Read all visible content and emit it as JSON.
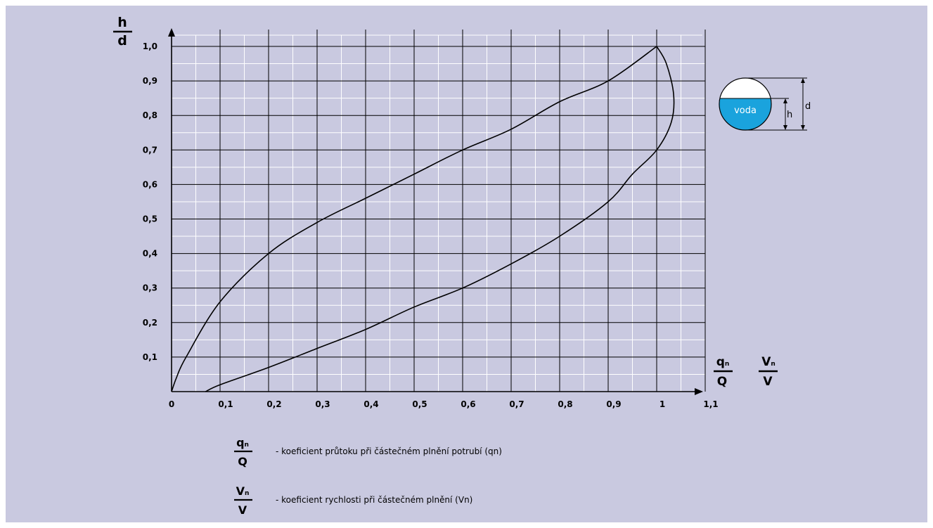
{
  "chart_data": {
    "type": "line",
    "xlim": [
      0,
      1.1
    ],
    "ylim": [
      0,
      1.0
    ],
    "grid": true,
    "x_ticks": [
      {
        "value": 0,
        "label": "0"
      },
      {
        "value": 0.1,
        "label": "0,1"
      },
      {
        "value": 0.2,
        "label": "0,2"
      },
      {
        "value": 0.3,
        "label": "0,3"
      },
      {
        "value": 0.4,
        "label": "0,4"
      },
      {
        "value": 0.5,
        "label": "0,5"
      },
      {
        "value": 0.6,
        "label": "0,6"
      },
      {
        "value": 0.7,
        "label": "0,7"
      },
      {
        "value": 0.8,
        "label": "0,8"
      },
      {
        "value": 0.9,
        "label": "0,9"
      },
      {
        "value": 1.0,
        "label": "1"
      },
      {
        "value": 1.1,
        "label": "1,1"
      }
    ],
    "y_ticks": [
      {
        "value": 0.1,
        "label": "0,1"
      },
      {
        "value": 0.2,
        "label": "0,2"
      },
      {
        "value": 0.3,
        "label": "0,3"
      },
      {
        "value": 0.4,
        "label": "0,4"
      },
      {
        "value": 0.5,
        "label": "0,5"
      },
      {
        "value": 0.6,
        "label": "0,6"
      },
      {
        "value": 0.7,
        "label": "0,7"
      },
      {
        "value": 0.8,
        "label": "0,8"
      },
      {
        "value": 0.9,
        "label": "0,9"
      },
      {
        "value": 1.0,
        "label": "1,0"
      }
    ],
    "y_axis_label": {
      "numerator": "h",
      "denominator": "d"
    },
    "x_axis_labels": [
      {
        "numerator": "q",
        "subscript": "n",
        "denominator": "Q"
      },
      {
        "numerator": "V",
        "subscript": "n",
        "denominator": "V"
      }
    ],
    "series": [
      {
        "points": [
          [
            0.0,
            0.0
          ],
          [
            0.01,
            0.04
          ],
          [
            0.03,
            0.1
          ],
          [
            0.1,
            0.26
          ],
          [
            0.2,
            0.4
          ],
          [
            0.3,
            0.49
          ],
          [
            0.4,
            0.56
          ],
          [
            0.5,
            0.63
          ],
          [
            0.6,
            0.7
          ],
          [
            0.7,
            0.76
          ],
          [
            0.8,
            0.84
          ],
          [
            0.9,
            0.9
          ],
          [
            1.0,
            1.0
          ],
          [
            1.02,
            0.95
          ],
          [
            1.035,
            0.86
          ],
          [
            1.03,
            0.78
          ],
          [
            1.0,
            0.7
          ],
          [
            0.95,
            0.63
          ],
          [
            0.9,
            0.55
          ],
          [
            0.8,
            0.45
          ],
          [
            0.7,
            0.37
          ],
          [
            0.6,
            0.3
          ],
          [
            0.5,
            0.245
          ],
          [
            0.4,
            0.18
          ],
          [
            0.3,
            0.125
          ],
          [
            0.2,
            0.07
          ],
          [
            0.1,
            0.02
          ],
          [
            0.07,
            0.0
          ]
        ]
      }
    ]
  },
  "pipe_diagram": {
    "water_label": "voda",
    "h_label": "h",
    "d_label": "d",
    "water_color": "#1aa3dd"
  },
  "legend": [
    {
      "numerator": "q",
      "subscript": "n",
      "denominator": "Q",
      "text": "- koeficient průtoku při částečném plnění potrubí (qn)"
    },
    {
      "numerator": "V",
      "subscript": "n",
      "denominator": "V",
      "text": "- koeficient rychlosti při částečném plnění (Vn)"
    }
  ],
  "colors": {
    "background": "#c9c9e0",
    "grid_major": "#000000",
    "grid_minor": "#ffffff",
    "curve": "#000000"
  }
}
